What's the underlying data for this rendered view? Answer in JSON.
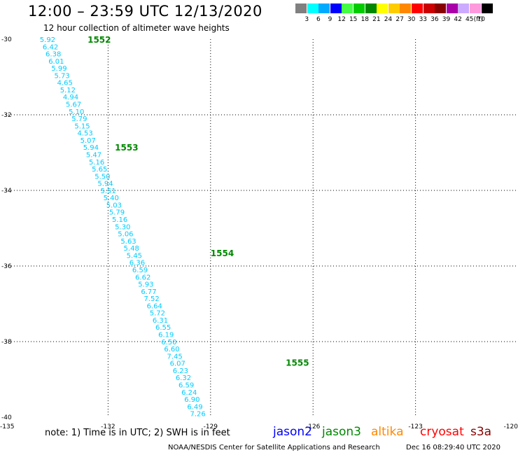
{
  "header": {
    "title": "12:00 – 23:59 UTC 12/13/2020",
    "subtitle": "12 hour collection of altimeter wave heights"
  },
  "legend": {
    "swatches": [
      {
        "label": "3",
        "color": "#808080"
      },
      {
        "label": "6",
        "color": "#00ffff"
      },
      {
        "label": "9",
        "color": "#00aaff"
      },
      {
        "label": "12",
        "color": "#0000ff"
      },
      {
        "label": "15",
        "color": "#44ff44"
      },
      {
        "label": "18",
        "color": "#00cc00"
      },
      {
        "label": "21",
        "color": "#008800"
      },
      {
        "label": "24",
        "color": "#ffff00"
      },
      {
        "label": "27",
        "color": "#ffcc00"
      },
      {
        "label": "30",
        "color": "#ff8800"
      },
      {
        "label": "33",
        "color": "#ff0000"
      },
      {
        "label": "36",
        "color": "#cc0000"
      },
      {
        "label": "39",
        "color": "#880000"
      },
      {
        "label": "42",
        "color": "#aa00aa"
      },
      {
        "label": "45",
        "color": "#ccaaff"
      },
      {
        "label": "70",
        "color": "#ff99dd"
      },
      {
        "label": "",
        "color": "#000000"
      }
    ],
    "unit": "(ft)"
  },
  "chart_data": {
    "type": "scatter",
    "x_ticks": [
      "-135",
      "-132",
      "-129",
      "-126",
      "-123",
      "-120"
    ],
    "y_ticks": [
      "-30",
      "-32",
      "-34",
      "-36",
      "-38",
      "-40"
    ],
    "xlim": [
      -135,
      -120
    ],
    "ylim": [
      -40,
      -30
    ],
    "grid": true,
    "point_color": "#00ccff",
    "values": [
      "5.92",
      "6.42",
      "6.38",
      "6.01",
      "5.99",
      "5.73",
      "4.65",
      "5.12",
      "4.94",
      "5.67",
      "5.10",
      "5.79",
      "5.15",
      "4.53",
      "5.07",
      "5.94",
      "5.47",
      "5.16",
      "5.65",
      "5.50",
      "5.94",
      "5.51",
      "5.40",
      "5.03",
      "5.79",
      "5.16",
      "5.30",
      "5.06",
      "5.63",
      "5.48",
      "5.45",
      "6.36",
      "6.59",
      "6.62",
      "5.93",
      "6.77",
      "7.52",
      "6.64",
      "5.72",
      "6.31",
      "6.55",
      "6.19",
      "6.50",
      "6.60",
      "7.45",
      "6.07",
      "6.23",
      "6.32",
      "6.59",
      "6.24",
      "6.90",
      "6.49",
      "7.26"
    ],
    "track_start": [
      -134.0,
      -30.0
    ],
    "track_end": [
      -129.6,
      -39.9
    ],
    "track_color": "#008800",
    "tracks": [
      {
        "label": "1552",
        "lon": -132.6,
        "lat": -30.0
      },
      {
        "label": "1553",
        "lon": -131.8,
        "lat": -32.85
      },
      {
        "label": "1554",
        "lon": -129.0,
        "lat": -35.65
      },
      {
        "label": "1555",
        "lon": -126.8,
        "lat": -38.55
      }
    ]
  },
  "footer": {
    "note": "note: 1) Time is in UTC; 2) SWH is in feet",
    "satellites": [
      {
        "label": "jason2",
        "color": "#0000ff"
      },
      {
        "label": "jason3",
        "color": "#008800"
      },
      {
        "label": "altika",
        "color": "#ff8800"
      },
      {
        "label": "cryosat",
        "color": "#ff0000"
      },
      {
        "label": "s3a",
        "color": "#880000"
      }
    ],
    "credit": "NOAA/NESDIS Center for Satellite Applications and Research",
    "timestamp": "Dec 16 08:29:40 UTC 2020"
  }
}
